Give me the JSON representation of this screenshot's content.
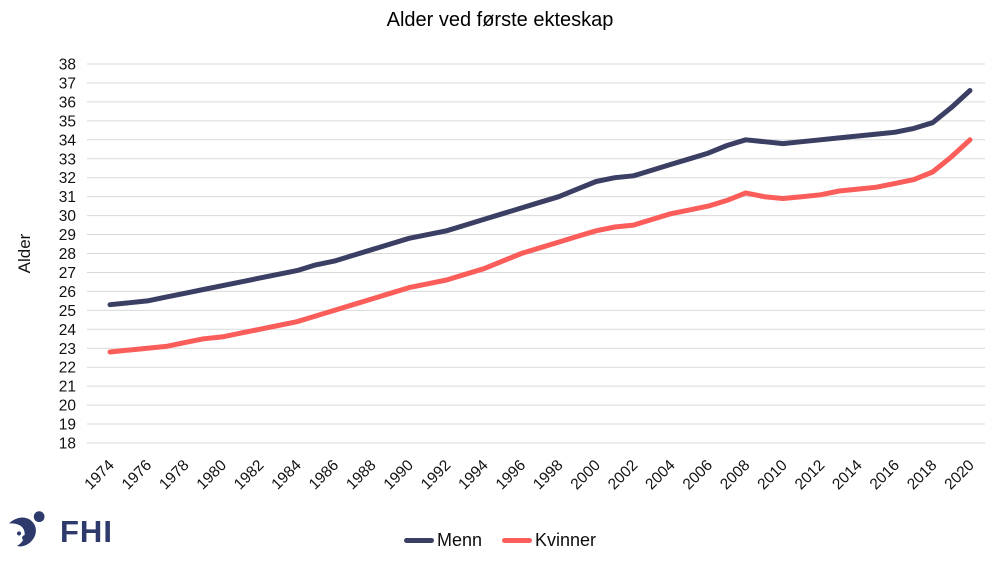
{
  "page": {
    "background": "#ffffff"
  },
  "logo": {
    "text": "FHI",
    "color": "#2d3a6b"
  },
  "legend": {
    "position": "bottom-center",
    "items": [
      {
        "label": "Menn",
        "color": "#3a3f63"
      },
      {
        "label": "Kvinner",
        "color": "#fa5d5a"
      }
    ]
  },
  "chart_data": {
    "type": "line",
    "title": "Alder ved første ekteskap",
    "xlabel": "",
    "ylabel": "Alder",
    "ylim": [
      18,
      38
    ],
    "ytick_step": 1,
    "xticks": [
      1974,
      1976,
      1978,
      1980,
      1982,
      1984,
      1986,
      1988,
      1990,
      1992,
      1994,
      1996,
      1998,
      2000,
      2002,
      2004,
      2006,
      2008,
      2010,
      2012,
      2014,
      2016,
      2018,
      2020
    ],
    "grid": "horizontal",
    "gridline_color": "#d9d9d9",
    "legend_position": "bottom-center",
    "x": [
      1974,
      1975,
      1976,
      1977,
      1978,
      1979,
      1980,
      1981,
      1982,
      1983,
      1984,
      1985,
      1986,
      1987,
      1988,
      1989,
      1990,
      1991,
      1992,
      1993,
      1994,
      1995,
      1996,
      1997,
      1998,
      1999,
      2000,
      2001,
      2002,
      2003,
      2004,
      2005,
      2006,
      2007,
      2008,
      2009,
      2010,
      2011,
      2012,
      2013,
      2014,
      2015,
      2016,
      2017,
      2018,
      2019,
      2020
    ],
    "series": [
      {
        "name": "Menn",
        "color": "#3a3f63",
        "values": [
          25.3,
          25.4,
          25.5,
          25.7,
          25.9,
          26.1,
          26.3,
          26.5,
          26.7,
          26.9,
          27.1,
          27.4,
          27.6,
          27.9,
          28.2,
          28.5,
          28.8,
          29.0,
          29.2,
          29.5,
          29.8,
          30.1,
          30.4,
          30.7,
          31.0,
          31.4,
          31.8,
          32.0,
          32.1,
          32.4,
          32.7,
          33.0,
          33.3,
          33.7,
          34.0,
          33.9,
          33.8,
          33.9,
          34.0,
          34.1,
          34.2,
          34.3,
          34.4,
          34.6,
          34.9,
          35.7,
          36.6
        ]
      },
      {
        "name": "Kvinner",
        "color": "#fa5d5a",
        "values": [
          22.8,
          22.9,
          23.0,
          23.1,
          23.3,
          23.5,
          23.6,
          23.8,
          24.0,
          24.2,
          24.4,
          24.7,
          25.0,
          25.3,
          25.6,
          25.9,
          26.2,
          26.4,
          26.6,
          26.9,
          27.2,
          27.6,
          28.0,
          28.3,
          28.6,
          28.9,
          29.2,
          29.4,
          29.5,
          29.8,
          30.1,
          30.3,
          30.5,
          30.8,
          31.2,
          31.0,
          30.9,
          31.0,
          31.1,
          31.3,
          31.4,
          31.5,
          31.7,
          31.9,
          32.3,
          33.1,
          34.0
        ]
      }
    ]
  }
}
